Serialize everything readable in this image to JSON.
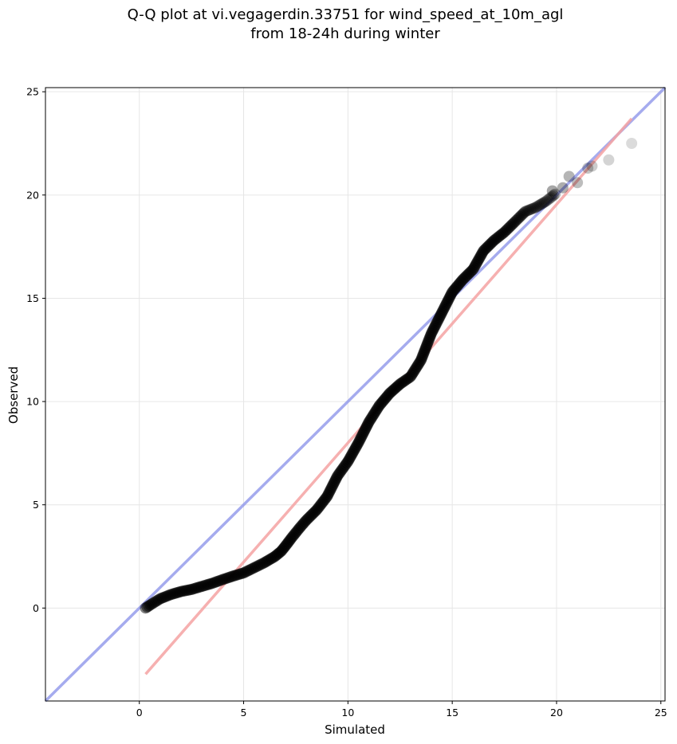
{
  "chart_data": {
    "type": "scatter",
    "title_line1": "Q-Q plot at vi.vegagerdin.33751 for wind_speed_at_10m_agl",
    "title_line2": "from 18-24h during winter",
    "xlabel": "Simulated",
    "ylabel": "Observed",
    "xlim": [
      -4.5,
      25.2
    ],
    "ylim": [
      -4.5,
      25.2
    ],
    "xticks": [
      0,
      5,
      10,
      15,
      20,
      25
    ],
    "yticks": [
      0,
      5,
      10,
      15,
      20,
      25
    ],
    "grid": true,
    "reference_line": {
      "color": "#8f96ea",
      "from": [
        -4.5,
        -4.5
      ],
      "to": [
        25.2,
        25.2
      ]
    },
    "fit_line": {
      "color": "#f4a2a2",
      "from": [
        0.3,
        -3.2
      ],
      "to": [
        23.6,
        23.7
      ]
    },
    "points_color": "#000000",
    "curve_anchors": [
      [
        0.3,
        0.0
      ],
      [
        0.6,
        0.2
      ],
      [
        1.0,
        0.45
      ],
      [
        1.5,
        0.65
      ],
      [
        2.0,
        0.8
      ],
      [
        2.5,
        0.9
      ],
      [
        3.0,
        1.05
      ],
      [
        3.5,
        1.2
      ],
      [
        4.0,
        1.38
      ],
      [
        4.5,
        1.55
      ],
      [
        5.0,
        1.7
      ],
      [
        5.5,
        1.95
      ],
      [
        6.0,
        2.2
      ],
      [
        6.5,
        2.5
      ],
      [
        6.8,
        2.75
      ],
      [
        7.0,
        3.0
      ],
      [
        7.3,
        3.4
      ],
      [
        7.7,
        3.9
      ],
      [
        8.0,
        4.25
      ],
      [
        8.5,
        4.75
      ],
      [
        9.0,
        5.4
      ],
      [
        9.5,
        6.4
      ],
      [
        10.0,
        7.1
      ],
      [
        10.5,
        8.0
      ],
      [
        11.0,
        9.0
      ],
      [
        11.5,
        9.8
      ],
      [
        12.0,
        10.4
      ],
      [
        12.5,
        10.85
      ],
      [
        13.0,
        11.2
      ],
      [
        13.5,
        12.0
      ],
      [
        14.0,
        13.3
      ],
      [
        14.5,
        14.3
      ],
      [
        15.0,
        15.3
      ],
      [
        15.5,
        15.9
      ],
      [
        16.0,
        16.4
      ],
      [
        16.5,
        17.3
      ],
      [
        17.0,
        17.8
      ],
      [
        17.5,
        18.2
      ],
      [
        18.0,
        18.7
      ],
      [
        18.5,
        19.2
      ],
      [
        19.0,
        19.4
      ],
      [
        19.5,
        19.7
      ],
      [
        20.0,
        20.1
      ]
    ],
    "outlier_points": [
      [
        19.8,
        20.2
      ],
      [
        20.3,
        20.35
      ],
      [
        20.6,
        20.9
      ],
      [
        21.0,
        20.6
      ],
      [
        21.5,
        21.3
      ],
      [
        21.7,
        21.4
      ],
      [
        22.5,
        21.7
      ],
      [
        23.6,
        22.5
      ]
    ]
  }
}
